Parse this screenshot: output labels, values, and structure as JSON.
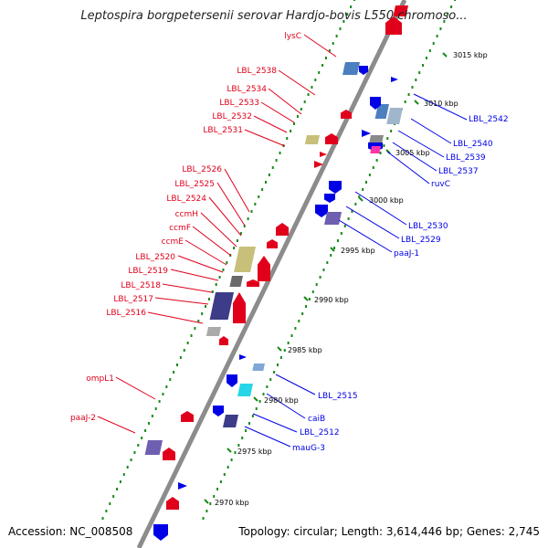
{
  "title": "Leptospira borgpetersenii serovar Hardjo-bovis L550 chromoso...",
  "footer": {
    "accession": "Accession: NC_008508",
    "topology": "Topology: circular; Length: 3,614,446 bp; Genes: 2,745"
  },
  "colors": {
    "forward": "#e0001b",
    "reverse": "#0000e6",
    "backbone": "#8c8c8c",
    "tick": "#1a8a1a"
  },
  "scale_labels": [
    "3015 kbp",
    "3010 kbp",
    "3005 kbp",
    "3000 kbp",
    "2995 kbp",
    "2990 kbp",
    "2985 kbp",
    "2980 kbp",
    "2975 kbp",
    "2970 kbp"
  ],
  "labels_left": [
    "lysC",
    "LBL_2538",
    "LBL_2534",
    "LBL_2533",
    "LBL_2532",
    "LBL_2531",
    "LBL_2526",
    "LBL_2525",
    "LBL_2524",
    "ccmH",
    "ccmF",
    "ccmE",
    "LBL_2520",
    "LBL_2519",
    "LBL_2518",
    "LBL_2517",
    "LBL_2516",
    "ompL1",
    "paaJ-2"
  ],
  "labels_right": [
    "LBL_2542",
    "LBL_2540",
    "LBL_2539",
    "LBL_2537",
    "ruvC",
    "LBL_2530",
    "LBL_2529",
    "paaJ-1",
    "LBL_2515",
    "caiB",
    "LBL_2512",
    "mauG-3"
  ]
}
